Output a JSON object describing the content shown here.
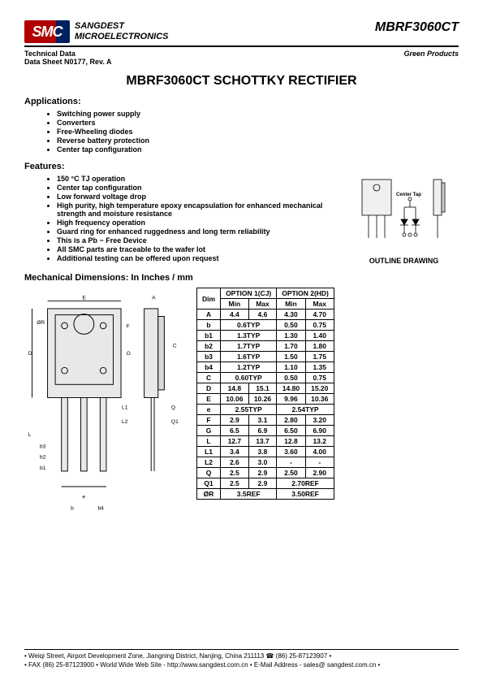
{
  "header": {
    "logo_text": "SMC",
    "company_line1": "SANGDEST",
    "company_line2": "MICROELECTRONICS",
    "part_number": "MBRF3060CT"
  },
  "subheader": {
    "left_line1": "Technical Data",
    "left_line2": "Data Sheet N0177, Rev. A",
    "right": "Green Products"
  },
  "title": "MBRF3060CT SCHOTTKY RECTIFIER",
  "applications": {
    "heading": "Applications:",
    "items": [
      "Switching power supply",
      "Converters",
      "Free-Wheeling diodes",
      "Reverse battery protection",
      "Center tap configuration"
    ]
  },
  "features": {
    "heading": "Features:",
    "items": [
      "150 °C TJ operation",
      "Center tap configuration",
      "Low forward voltage drop",
      "High purity, high temperature epoxy encapsulation for enhanced mechanical strength and moisture resistance",
      "High frequency operation",
      "Guard ring for enhanced ruggedness and long term reliability",
      "This is a Pb − Free Device",
      "All SMC parts are traceable to the wafer lot",
      "Additional testing can be offered upon request"
    ]
  },
  "outline_label": "OUTLINE DRAWING",
  "outline_centertap": "Center Tap",
  "mech": {
    "heading": "Mechanical Dimensions: In Inches / mm",
    "option1": "OPTION 1(CJ)",
    "option2": "OPTION 2(HD)",
    "col_dim": "Dim",
    "col_min": "Min",
    "col_max": "Max",
    "rows": [
      {
        "dim": "A",
        "o1min": "4.4",
        "o1max": "4.6",
        "o2min": "4.30",
        "o2max": "4.70"
      },
      {
        "dim": "b",
        "o1span": "0.6TYP",
        "o2min": "0.50",
        "o2max": "0.75"
      },
      {
        "dim": "b1",
        "o1span": "1.3TYP",
        "o2min": "1.30",
        "o2max": "1.40"
      },
      {
        "dim": "b2",
        "o1span": "1.7TYP",
        "o2min": "1.70",
        "o2max": "1.80"
      },
      {
        "dim": "b3",
        "o1span": "1.6TYP",
        "o2min": "1.50",
        "o2max": "1.75"
      },
      {
        "dim": "b4",
        "o1span": "1.2TYP",
        "o2min": "1.10",
        "o2max": "1.35"
      },
      {
        "dim": "C",
        "o1span": "0.60TYP",
        "o2min": "0.50",
        "o2max": "0.75"
      },
      {
        "dim": "D",
        "o1min": "14.8",
        "o1max": "15.1",
        "o2min": "14.80",
        "o2max": "15.20"
      },
      {
        "dim": "E",
        "o1min": "10.06",
        "o1max": "10.26",
        "o2min": "9.96",
        "o2max": "10.36"
      },
      {
        "dim": "e",
        "o1span": "2.55TYP",
        "o2span": "2.54TYP"
      },
      {
        "dim": "F",
        "o1min": "2.9",
        "o1max": "3.1",
        "o2min": "2.80",
        "o2max": "3.20"
      },
      {
        "dim": "G",
        "o1min": "6.5",
        "o1max": "6.9",
        "o2min": "6.50",
        "o2max": "6.90"
      },
      {
        "dim": "L",
        "o1min": "12.7",
        "o1max": "13.7",
        "o2min": "12.8",
        "o2max": "13.2"
      },
      {
        "dim": "L1",
        "o1min": "3.4",
        "o1max": "3.8",
        "o2min": "3.60",
        "o2max": "4.00"
      },
      {
        "dim": "L2",
        "o1min": "2.6",
        "o1max": "3.0",
        "o2min": "-",
        "o2max": "-"
      },
      {
        "dim": "Q",
        "o1min": "2.5",
        "o1max": "2.9",
        "o2min": "2.50",
        "o2max": "2.90"
      },
      {
        "dim": "Q1",
        "o1min": "2.5",
        "o1max": "2.9",
        "o2span": "2.70REF"
      },
      {
        "dim": "ØR",
        "o1span": "3.5REF",
        "o2span": "3.50REF"
      }
    ]
  },
  "footer": {
    "line1": "• Weiqi Street, Airport Development Zone, Jiangning District, Nanjing, China 211113 ☎ (86) 25-87123907 •",
    "line2": "• FAX (86) 25-87123900 • World Wide Web Site - http://www.sangdest.com.cn • E-Mail Address - sales@ sangdest.com.cn •"
  },
  "colors": {
    "logo_red": "#b00000",
    "logo_blue": "#002060",
    "text": "#000000",
    "bg": "#ffffff",
    "drawing_fill": "#e8e8e8",
    "border": "#000000"
  }
}
